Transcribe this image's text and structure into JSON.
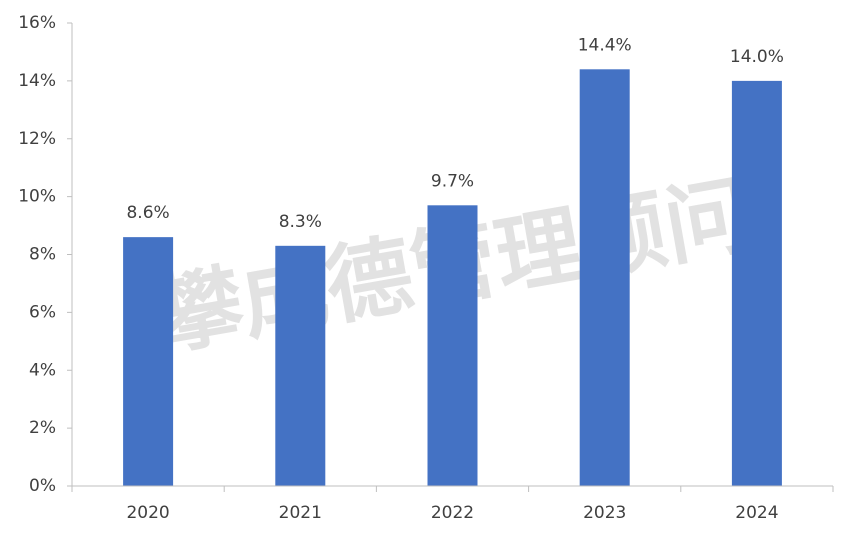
{
  "chart_data": {
    "type": "bar",
    "watermark": "攀成德管理顾问",
    "categories": [
      "2020",
      "2021",
      "2022",
      "2023",
      "2024"
    ],
    "values": [
      8.6,
      8.3,
      9.7,
      14.4,
      14.0
    ],
    "value_labels": [
      "8.6%",
      "8.3%",
      "9.7%",
      "14.4%",
      "14.0%"
    ],
    "color": "#4472c4",
    "ylim": [
      0,
      16
    ],
    "yticks": [
      {
        "value": 0,
        "label": "0%"
      },
      {
        "value": 2,
        "label": "2%"
      },
      {
        "value": 4,
        "label": "4%"
      },
      {
        "value": 6,
        "label": "6%"
      },
      {
        "value": 8,
        "label": "8%"
      },
      {
        "value": 10,
        "label": "10%"
      },
      {
        "value": 12,
        "label": "12%"
      },
      {
        "value": 14,
        "label": "14%"
      },
      {
        "value": 16,
        "label": "16%"
      }
    ],
    "grid": false
  }
}
